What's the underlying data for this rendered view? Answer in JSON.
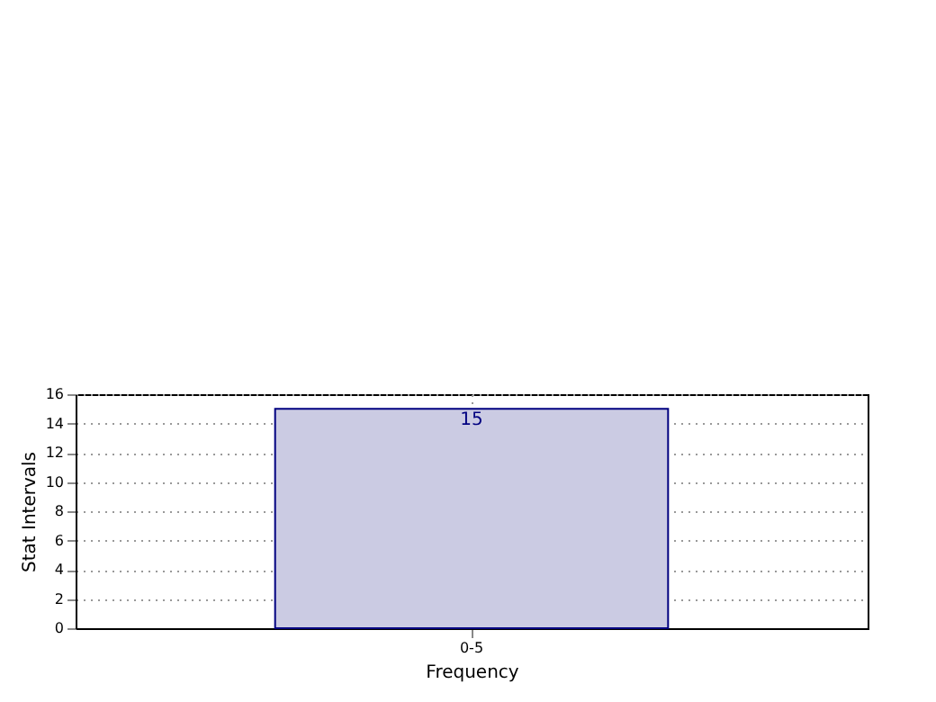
{
  "chart_data": {
    "type": "bar",
    "xlabel": "Frequency",
    "ylabel": "Stat Intervals",
    "categories": [
      "0-5"
    ],
    "values": [
      15
    ],
    "color": "#cbcbe3",
    "ylim": [
      0,
      16
    ],
    "yticks": [
      0,
      2,
      4,
      6,
      8,
      10,
      12,
      14,
      16
    ],
    "grid": true,
    "data_labels": true
  }
}
